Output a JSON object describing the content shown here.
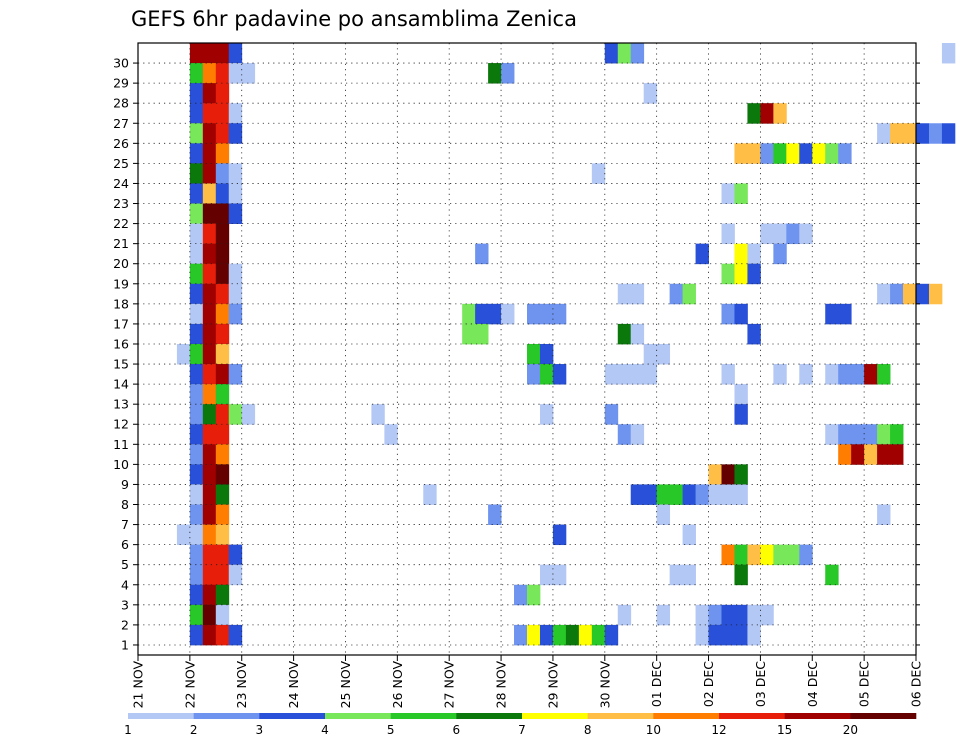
{
  "chart_data": {
    "type": "heatmap",
    "title": "GEFS 6hr padavine po ansamblima Zenica",
    "xlabel": "",
    "ylabel": "",
    "x_ticks": [
      "21 NOV",
      "22 NOV",
      "23 NOV",
      "24 NOV",
      "25 NOV",
      "26 NOV",
      "27 NOV",
      "28 NOV",
      "29 NOV",
      "30 NOV",
      "01 DEC",
      "02 DEC",
      "03 DEC",
      "04 DEC",
      "05 DEC",
      "06 DEC"
    ],
    "y_ticks": [
      "1",
      "2",
      "3",
      "4",
      "5",
      "6",
      "7",
      "8",
      "9",
      "10",
      "11",
      "12",
      "13",
      "14",
      "15",
      "16",
      "17",
      "18",
      "19",
      "20",
      "21",
      "22",
      "23",
      "24",
      "25",
      "26",
      "27",
      "28",
      "29",
      "30"
    ],
    "time_step_hours": 6,
    "grid": "dotted",
    "legend_position": "bottom",
    "colorbar": {
      "levels": [
        "1",
        "2",
        "3",
        "4",
        "5",
        "6",
        "7",
        "8",
        "10",
        "12",
        "15",
        "20"
      ],
      "colors": [
        "#b4c8f5",
        "#6e94f0",
        "#2850d8",
        "#78e85a",
        "#28c828",
        "#0a780a",
        "#ffff00",
        "#ffbe46",
        "#ff7d00",
        "#e61e0a",
        "#a00000",
        "#640000"
      ]
    },
    "member_cells": [
      {
        "member": 30,
        "cells": [
          [
            4,
            11
          ],
          [
            5,
            11
          ],
          [
            6,
            11
          ],
          [
            7,
            3
          ],
          [
            36,
            3
          ],
          [
            37,
            4
          ],
          [
            38,
            2
          ],
          [
            62,
            1
          ]
        ]
      },
      {
        "member": 29,
        "cells": [
          [
            4,
            5
          ],
          [
            5,
            9
          ],
          [
            6,
            10
          ],
          [
            7,
            1
          ],
          [
            8,
            1
          ],
          [
            27,
            6
          ],
          [
            28,
            2
          ]
        ]
      },
      {
        "member": 28,
        "cells": [
          [
            4,
            3
          ],
          [
            5,
            11
          ],
          [
            6,
            10
          ],
          [
            39,
            1
          ]
        ]
      },
      {
        "member": 27,
        "cells": [
          [
            4,
            3
          ],
          [
            5,
            10
          ],
          [
            6,
            10
          ],
          [
            7,
            1
          ],
          [
            47,
            6
          ],
          [
            48,
            11
          ],
          [
            49,
            8
          ]
        ]
      },
      {
        "member": 26,
        "cells": [
          [
            4,
            4
          ],
          [
            5,
            11
          ],
          [
            6,
            10
          ],
          [
            7,
            3
          ],
          [
            57,
            1
          ],
          [
            58,
            8
          ],
          [
            59,
            8
          ],
          [
            60,
            3
          ],
          [
            61,
            2
          ],
          [
            62,
            3
          ]
        ]
      },
      {
        "member": 25,
        "cells": [
          [
            4,
            3
          ],
          [
            5,
            11
          ],
          [
            6,
            9
          ],
          [
            46,
            8
          ],
          [
            47,
            8
          ],
          [
            48,
            2
          ],
          [
            49,
            5
          ],
          [
            50,
            7
          ],
          [
            51,
            3
          ],
          [
            52,
            7
          ],
          [
            53,
            4
          ],
          [
            54,
            2
          ]
        ]
      },
      {
        "member": 24,
        "cells": [
          [
            4,
            6
          ],
          [
            5,
            11
          ],
          [
            6,
            2
          ],
          [
            7,
            1
          ],
          [
            35,
            1
          ]
        ]
      },
      {
        "member": 23,
        "cells": [
          [
            4,
            3
          ],
          [
            5,
            8
          ],
          [
            6,
            3
          ],
          [
            7,
            1
          ],
          [
            45,
            1
          ],
          [
            46,
            4
          ]
        ]
      },
      {
        "member": 22,
        "cells": [
          [
            4,
            4
          ],
          [
            5,
            12
          ],
          [
            6,
            12
          ],
          [
            7,
            3
          ]
        ]
      },
      {
        "member": 21,
        "cells": [
          [
            4,
            1
          ],
          [
            5,
            10
          ],
          [
            6,
            12
          ],
          [
            45,
            1
          ],
          [
            48,
            1
          ],
          [
            49,
            1
          ],
          [
            50,
            2
          ],
          [
            51,
            1
          ]
        ]
      },
      {
        "member": 20,
        "cells": [
          [
            4,
            1
          ],
          [
            5,
            11
          ],
          [
            6,
            12
          ],
          [
            26,
            2
          ],
          [
            43,
            3
          ],
          [
            46,
            7
          ],
          [
            47,
            1
          ],
          [
            49,
            2
          ]
        ]
      },
      {
        "member": 19,
        "cells": [
          [
            4,
            5
          ],
          [
            5,
            10
          ],
          [
            6,
            12
          ],
          [
            7,
            1
          ],
          [
            45,
            4
          ],
          [
            46,
            7
          ],
          [
            47,
            3
          ]
        ]
      },
      {
        "member": 18,
        "cells": [
          [
            4,
            3
          ],
          [
            5,
            11
          ],
          [
            6,
            10
          ],
          [
            7,
            1
          ],
          [
            37,
            1
          ],
          [
            38,
            1
          ],
          [
            41,
            2
          ],
          [
            42,
            4
          ],
          [
            57,
            1
          ],
          [
            58,
            2
          ],
          [
            59,
            8
          ],
          [
            60,
            3
          ],
          [
            61,
            8
          ]
        ]
      },
      {
        "member": 17,
        "cells": [
          [
            4,
            1
          ],
          [
            5,
            11
          ],
          [
            6,
            9
          ],
          [
            7,
            2
          ],
          [
            25,
            4
          ],
          [
            26,
            3
          ],
          [
            27,
            3
          ],
          [
            28,
            1
          ],
          [
            30,
            2
          ],
          [
            31,
            2
          ],
          [
            32,
            2
          ],
          [
            45,
            2
          ],
          [
            46,
            3
          ],
          [
            53,
            3
          ],
          [
            54,
            3
          ]
        ]
      },
      {
        "member": 16,
        "cells": [
          [
            4,
            3
          ],
          [
            5,
            11
          ],
          [
            6,
            10
          ],
          [
            25,
            4
          ],
          [
            26,
            4
          ],
          [
            37,
            6
          ],
          [
            38,
            1
          ],
          [
            47,
            3
          ]
        ]
      },
      {
        "member": 15,
        "cells": [
          [
            3,
            1
          ],
          [
            4,
            5
          ],
          [
            5,
            11
          ],
          [
            6,
            8
          ],
          [
            30,
            5
          ],
          [
            31,
            3
          ],
          [
            39,
            1
          ],
          [
            40,
            1
          ]
        ]
      },
      {
        "member": 14,
        "cells": [
          [
            4,
            3
          ],
          [
            5,
            10
          ],
          [
            6,
            11
          ],
          [
            7,
            2
          ],
          [
            30,
            2
          ],
          [
            31,
            5
          ],
          [
            32,
            3
          ],
          [
            36,
            1
          ],
          [
            37,
            1
          ],
          [
            38,
            1
          ],
          [
            39,
            1
          ],
          [
            45,
            1
          ],
          [
            49,
            1
          ],
          [
            51,
            1
          ],
          [
            53,
            1
          ],
          [
            54,
            2
          ],
          [
            55,
            2
          ],
          [
            56,
            11
          ],
          [
            57,
            5
          ]
        ]
      },
      {
        "member": 13,
        "cells": [
          [
            4,
            2
          ],
          [
            5,
            9
          ],
          [
            6,
            5
          ],
          [
            46,
            1
          ]
        ]
      },
      {
        "member": 12,
        "cells": [
          [
            4,
            2
          ],
          [
            5,
            6
          ],
          [
            6,
            10
          ],
          [
            7,
            4
          ],
          [
            8,
            1
          ],
          [
            18,
            1
          ],
          [
            31,
            1
          ],
          [
            36,
            2
          ],
          [
            46,
            3
          ]
        ]
      },
      {
        "member": 11,
        "cells": [
          [
            4,
            3
          ],
          [
            5,
            10
          ],
          [
            6,
            10
          ],
          [
            19,
            1
          ],
          [
            37,
            2
          ],
          [
            38,
            1
          ],
          [
            53,
            1
          ],
          [
            54,
            2
          ],
          [
            55,
            2
          ],
          [
            56,
            2
          ],
          [
            57,
            4
          ],
          [
            58,
            5
          ]
        ]
      },
      {
        "member": 10,
        "cells": [
          [
            4,
            2
          ],
          [
            5,
            11
          ],
          [
            6,
            9
          ],
          [
            54,
            9
          ],
          [
            55,
            11
          ],
          [
            56,
            8
          ],
          [
            57,
            11
          ],
          [
            58,
            11
          ]
        ]
      },
      {
        "member": 9,
        "cells": [
          [
            4,
            3
          ],
          [
            5,
            11
          ],
          [
            6,
            12
          ],
          [
            44,
            8
          ],
          [
            45,
            12
          ],
          [
            46,
            6
          ]
        ]
      },
      {
        "member": 8,
        "cells": [
          [
            4,
            1
          ],
          [
            5,
            11
          ],
          [
            6,
            6
          ],
          [
            22,
            1
          ],
          [
            38,
            3
          ],
          [
            39,
            3
          ],
          [
            40,
            5
          ],
          [
            41,
            5
          ],
          [
            42,
            3
          ],
          [
            43,
            2
          ],
          [
            44,
            1
          ],
          [
            45,
            1
          ],
          [
            46,
            1
          ]
        ]
      },
      {
        "member": 7,
        "cells": [
          [
            4,
            2
          ],
          [
            5,
            11
          ],
          [
            6,
            9
          ],
          [
            27,
            2
          ],
          [
            40,
            1
          ],
          [
            57,
            1
          ]
        ]
      },
      {
        "member": 6,
        "cells": [
          [
            3,
            1
          ],
          [
            4,
            1
          ],
          [
            5,
            9
          ],
          [
            6,
            8
          ],
          [
            32,
            3
          ],
          [
            42,
            1
          ]
        ]
      },
      {
        "member": 5,
        "cells": [
          [
            4,
            2
          ],
          [
            5,
            10
          ],
          [
            6,
            10
          ],
          [
            7,
            3
          ],
          [
            45,
            9
          ],
          [
            46,
            5
          ],
          [
            47,
            8
          ],
          [
            48,
            7
          ],
          [
            49,
            4
          ],
          [
            50,
            4
          ],
          [
            51,
            2
          ]
        ]
      },
      {
        "member": 4,
        "cells": [
          [
            4,
            2
          ],
          [
            5,
            10
          ],
          [
            6,
            10
          ],
          [
            7,
            1
          ],
          [
            31,
            1
          ],
          [
            32,
            1
          ],
          [
            41,
            1
          ],
          [
            42,
            1
          ],
          [
            46,
            6
          ],
          [
            53,
            5
          ]
        ]
      },
      {
        "member": 3,
        "cells": [
          [
            4,
            3
          ],
          [
            5,
            11
          ],
          [
            6,
            6
          ],
          [
            29,
            2
          ],
          [
            30,
            4
          ]
        ]
      },
      {
        "member": 2,
        "cells": [
          [
            4,
            5
          ],
          [
            5,
            12
          ],
          [
            6,
            1
          ],
          [
            37,
            1
          ],
          [
            40,
            1
          ],
          [
            43,
            1
          ],
          [
            44,
            2
          ],
          [
            45,
            3
          ],
          [
            46,
            3
          ],
          [
            47,
            1
          ],
          [
            48,
            1
          ]
        ]
      },
      {
        "member": 1,
        "cells": [
          [
            4,
            3
          ],
          [
            5,
            11
          ],
          [
            6,
            10
          ],
          [
            7,
            3
          ],
          [
            29,
            2
          ],
          [
            30,
            7
          ],
          [
            31,
            3
          ],
          [
            32,
            5
          ],
          [
            33,
            6
          ],
          [
            34,
            7
          ],
          [
            35,
            5
          ],
          [
            36,
            3
          ],
          [
            43,
            1
          ],
          [
            44,
            3
          ],
          [
            45,
            3
          ],
          [
            46,
            3
          ],
          [
            47,
            1
          ]
        ]
      }
    ]
  }
}
